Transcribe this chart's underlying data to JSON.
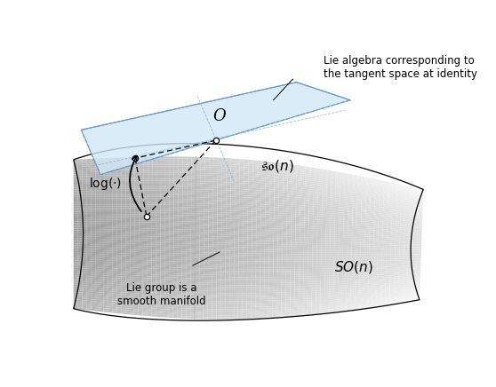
{
  "bg_color": "#ffffff",
  "label_O": "$O$",
  "label_son": "$\\mathfrak{so}(n)$",
  "label_SON": "$SO(n)$",
  "label_log": "$\\log(\\cdot)$",
  "label_lie_algebra": "Lie algebra corresponding to\nthe tangent space at identity",
  "label_lie_group": "Lie group is a\nsmooth manifold",
  "figsize": [
    5.58,
    4.36
  ],
  "dpi": 100
}
